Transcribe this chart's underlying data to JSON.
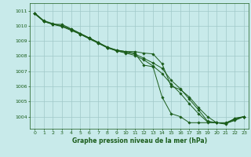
{
  "background_color": "#c8eaea",
  "grid_color": "#a0c8c8",
  "line_color": "#1a5c1a",
  "title": "Graphe pression niveau de la mer (hPa)",
  "xlim": [
    -0.5,
    23.5
  ],
  "ylim": [
    1003.2,
    1011.5
  ],
  "yticks": [
    1004,
    1005,
    1006,
    1007,
    1008,
    1009,
    1010,
    1011
  ],
  "xticks": [
    0,
    1,
    2,
    3,
    4,
    5,
    6,
    7,
    8,
    9,
    10,
    11,
    12,
    13,
    14,
    15,
    16,
    17,
    18,
    19,
    20,
    21,
    22,
    23
  ],
  "series": [
    [
      1010.8,
      1010.3,
      1010.1,
      1010.1,
      1009.8,
      1009.5,
      1009.2,
      1008.9,
      1008.6,
      1008.4,
      1008.3,
      1008.2,
      1007.4,
      1007.3,
      1005.3,
      1004.2,
      1004.0,
      1003.6,
      1003.6,
      1003.6,
      1003.6,
      1003.5,
      1003.9,
      1004.0
    ],
    [
      1010.8,
      1010.3,
      1010.1,
      1010.0,
      1009.8,
      1009.5,
      1009.2,
      1008.9,
      1008.55,
      1008.4,
      1008.3,
      1008.3,
      1008.2,
      1008.15,
      1007.5,
      1006.0,
      1005.8,
      1005.3,
      1004.6,
      1004.0,
      1003.6,
      1003.6,
      1003.85,
      1004.0
    ],
    [
      1010.85,
      1010.35,
      1010.15,
      1010.0,
      1009.75,
      1009.45,
      1009.15,
      1008.85,
      1008.55,
      1008.35,
      1008.25,
      1008.15,
      1007.85,
      1007.55,
      1007.2,
      1006.4,
      1005.85,
      1005.15,
      1004.45,
      1003.7,
      1003.6,
      1003.55,
      1003.8,
      1004.0
    ],
    [
      1010.85,
      1010.3,
      1010.1,
      1009.95,
      1009.7,
      1009.45,
      1009.15,
      1008.85,
      1008.55,
      1008.35,
      1008.2,
      1008.05,
      1007.75,
      1007.35,
      1006.85,
      1006.15,
      1005.55,
      1004.85,
      1004.2,
      1003.65,
      1003.6,
      1003.55,
      1003.75,
      1004.0
    ]
  ]
}
